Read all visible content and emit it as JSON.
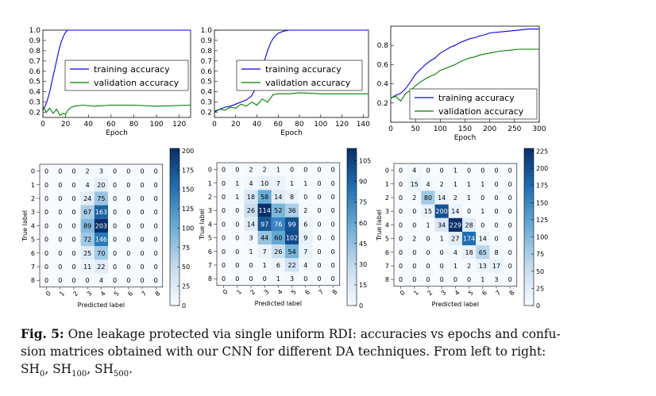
{
  "caption": {
    "label": "Fig. 5:",
    "text": "One leakage protected via single uniform RDI: accuracies vs epochs and confusion matrices obtained with our CNN for different DA techniques. From left to right: ",
    "line1": "One leakage protected via single uniform RDI: accuracies vs epochs and confu-",
    "line2": "sion matrices obtained with our CNN for different DA techniques. From left to right:",
    "line3_prefix": "SH",
    "subs": [
      "0",
      "100",
      "500"
    ]
  },
  "colors": {
    "training": "#0000ff",
    "validation": "#008000",
    "cmap_low": "#f7fbff",
    "cmap_high": "#08306b"
  },
  "chart_data": [
    {
      "type": "line",
      "panel": "SH0",
      "xlabel": "Epoch",
      "xlim": [
        0,
        130
      ],
      "ylim": [
        0.15,
        1.0
      ],
      "xticks": [
        0,
        20,
        40,
        60,
        80,
        100,
        120
      ],
      "yticks": [
        "0.2",
        "0.3",
        "0.4",
        "0.5",
        "0.6",
        "0.7",
        "0.8",
        "0.9",
        "1.0"
      ],
      "legend": "center-right",
      "series": [
        {
          "name": "training accuracy",
          "x": [
            0,
            2,
            4,
            6,
            8,
            10,
            12,
            14,
            16,
            18,
            20,
            22,
            25,
            30,
            40,
            60,
            80,
            100,
            130
          ],
          "values": [
            0.22,
            0.26,
            0.32,
            0.4,
            0.5,
            0.6,
            0.7,
            0.8,
            0.88,
            0.94,
            0.98,
            1.0,
            1.0,
            1.0,
            1.0,
            1.0,
            1.0,
            1.0,
            1.0
          ]
        },
        {
          "name": "validation accuracy",
          "x": [
            0,
            3,
            6,
            9,
            12,
            15,
            18,
            20,
            22,
            25,
            28,
            35,
            45,
            60,
            80,
            100,
            130
          ],
          "values": [
            0.26,
            0.2,
            0.24,
            0.19,
            0.23,
            0.17,
            0.19,
            0.18,
            0.22,
            0.25,
            0.26,
            0.27,
            0.26,
            0.27,
            0.27,
            0.26,
            0.27
          ]
        }
      ]
    },
    {
      "type": "line",
      "panel": "SH100",
      "xlabel": "Epoch",
      "xlim": [
        0,
        145
      ],
      "ylim": [
        0.15,
        1.0
      ],
      "xticks": [
        0,
        20,
        40,
        60,
        80,
        100,
        120,
        140
      ],
      "yticks": [
        "0.2",
        "0.3",
        "0.4",
        "0.5",
        "0.6",
        "0.7",
        "0.8",
        "0.9",
        "1.0"
      ],
      "legend": "center-right",
      "series": [
        {
          "name": "training accuracy",
          "x": [
            0,
            5,
            10,
            15,
            20,
            25,
            30,
            35,
            38,
            41,
            44,
            47,
            50,
            53,
            56,
            60,
            65,
            70,
            80,
            100,
            145
          ],
          "values": [
            0.21,
            0.23,
            0.25,
            0.26,
            0.28,
            0.3,
            0.32,
            0.36,
            0.42,
            0.5,
            0.6,
            0.7,
            0.8,
            0.88,
            0.93,
            0.97,
            0.99,
            1.0,
            1.0,
            1.0,
            1.0
          ]
        },
        {
          "name": "validation accuracy",
          "x": [
            0,
            5,
            10,
            15,
            20,
            25,
            30,
            35,
            40,
            45,
            50,
            55,
            60,
            70,
            80,
            100,
            145
          ],
          "values": [
            0.2,
            0.23,
            0.22,
            0.25,
            0.24,
            0.28,
            0.26,
            0.3,
            0.27,
            0.33,
            0.3,
            0.37,
            0.38,
            0.38,
            0.39,
            0.38,
            0.38
          ]
        }
      ]
    },
    {
      "type": "line",
      "panel": "SH500",
      "xlabel": "Epoch",
      "xlim": [
        0,
        300
      ],
      "ylim": [
        0.0,
        1.0
      ],
      "xticks": [
        0,
        50,
        100,
        150,
        200,
        250,
        300
      ],
      "yticks": [
        "0.2",
        "0.4",
        "0.6",
        "0.8"
      ],
      "legend": "lower-right",
      "series": [
        {
          "name": "training accuracy",
          "x": [
            0,
            10,
            20,
            30,
            40,
            50,
            60,
            70,
            80,
            90,
            100,
            110,
            120,
            130,
            140,
            150,
            160,
            170,
            180,
            190,
            200,
            220,
            240,
            260,
            280,
            300
          ],
          "values": [
            0.25,
            0.28,
            0.3,
            0.35,
            0.42,
            0.5,
            0.55,
            0.6,
            0.64,
            0.67,
            0.72,
            0.75,
            0.78,
            0.8,
            0.83,
            0.85,
            0.87,
            0.88,
            0.9,
            0.91,
            0.93,
            0.94,
            0.95,
            0.96,
            0.97,
            0.97
          ]
        },
        {
          "name": "validation accuracy",
          "x": [
            0,
            10,
            20,
            30,
            40,
            50,
            60,
            70,
            80,
            90,
            100,
            110,
            120,
            130,
            140,
            150,
            160,
            170,
            180,
            190,
            200,
            220,
            240,
            260,
            280,
            300
          ],
          "values": [
            0.25,
            0.27,
            0.22,
            0.3,
            0.33,
            0.38,
            0.42,
            0.45,
            0.48,
            0.5,
            0.54,
            0.56,
            0.58,
            0.6,
            0.63,
            0.65,
            0.67,
            0.68,
            0.7,
            0.71,
            0.72,
            0.74,
            0.75,
            0.76,
            0.76,
            0.76
          ]
        }
      ]
    },
    {
      "type": "heatmap",
      "panel": "SH0",
      "xlabel": "Predicted label",
      "ylabel": "True label",
      "labels": [
        "0",
        "1",
        "2",
        "3",
        "4",
        "5",
        "6",
        "7",
        "8"
      ],
      "colorbar_ticks": [
        "0",
        "25",
        "50",
        "75",
        "100",
        "125",
        "150",
        "175",
        "200"
      ],
      "vmax": 203,
      "values": [
        [
          0,
          0,
          0,
          2,
          3,
          0,
          0,
          0,
          0
        ],
        [
          0,
          0,
          0,
          4,
          20,
          0,
          0,
          0,
          0
        ],
        [
          0,
          0,
          0,
          24,
          75,
          0,
          0,
          0,
          0
        ],
        [
          0,
          0,
          0,
          67,
          163,
          0,
          0,
          0,
          0
        ],
        [
          0,
          0,
          0,
          89,
          203,
          0,
          0,
          0,
          0
        ],
        [
          0,
          0,
          0,
          72,
          146,
          0,
          0,
          0,
          0
        ],
        [
          0,
          0,
          0,
          25,
          70,
          0,
          0,
          0,
          0
        ],
        [
          0,
          0,
          0,
          11,
          22,
          0,
          0,
          0,
          0
        ],
        [
          0,
          0,
          0,
          0,
          4,
          0,
          0,
          0,
          0
        ]
      ]
    },
    {
      "type": "heatmap",
      "panel": "SH100",
      "xlabel": "Predicted label",
      "ylabel": "True label",
      "labels": [
        "0",
        "1",
        "2",
        "3",
        "4",
        "5",
        "6",
        "7",
        "8"
      ],
      "colorbar_ticks": [
        "0",
        "15",
        "30",
        "45",
        "60",
        "75",
        "90",
        "105"
      ],
      "vmax": 114,
      "values": [
        [
          0,
          0,
          2,
          2,
          1,
          0,
          0,
          0,
          0
        ],
        [
          0,
          1,
          4,
          10,
          7,
          1,
          1,
          0,
          0
        ],
        [
          0,
          1,
          18,
          58,
          14,
          8,
          0,
          0,
          0
        ],
        [
          0,
          0,
          26,
          114,
          52,
          36,
          2,
          0,
          0
        ],
        [
          0,
          0,
          14,
          97,
          76,
          99,
          6,
          0,
          0
        ],
        [
          0,
          0,
          3,
          44,
          60,
          102,
          9,
          0,
          0
        ],
        [
          0,
          0,
          1,
          7,
          26,
          54,
          7,
          0,
          0
        ],
        [
          0,
          0,
          0,
          1,
          6,
          22,
          4,
          0,
          0
        ],
        [
          0,
          0,
          0,
          0,
          1,
          3,
          0,
          0,
          0
        ]
      ]
    },
    {
      "type": "heatmap",
      "panel": "SH500",
      "xlabel": "Predicted label",
      "ylabel": "True label",
      "labels": [
        "0",
        "1",
        "2",
        "3",
        "4",
        "5",
        "6",
        "7",
        "8"
      ],
      "colorbar_ticks": [
        "0",
        "25",
        "50",
        "75",
        "100",
        "125",
        "150",
        "175",
        "200",
        "225"
      ],
      "vmax": 229,
      "values": [
        [
          0,
          4,
          0,
          0,
          1,
          0,
          0,
          0,
          0
        ],
        [
          0,
          15,
          4,
          2,
          1,
          1,
          1,
          0,
          0
        ],
        [
          0,
          2,
          80,
          14,
          2,
          1,
          0,
          0,
          0
        ],
        [
          0,
          0,
          15,
          200,
          14,
          0,
          1,
          0,
          0
        ],
        [
          0,
          0,
          1,
          34,
          229,
          28,
          0,
          0,
          0
        ],
        [
          0,
          2,
          0,
          1,
          27,
          174,
          14,
          0,
          0
        ],
        [
          0,
          0,
          0,
          0,
          4,
          18,
          65,
          8,
          0
        ],
        [
          0,
          0,
          0,
          0,
          1,
          2,
          13,
          17,
          0
        ],
        [
          0,
          0,
          0,
          0,
          0,
          0,
          1,
          3,
          0
        ]
      ]
    }
  ]
}
